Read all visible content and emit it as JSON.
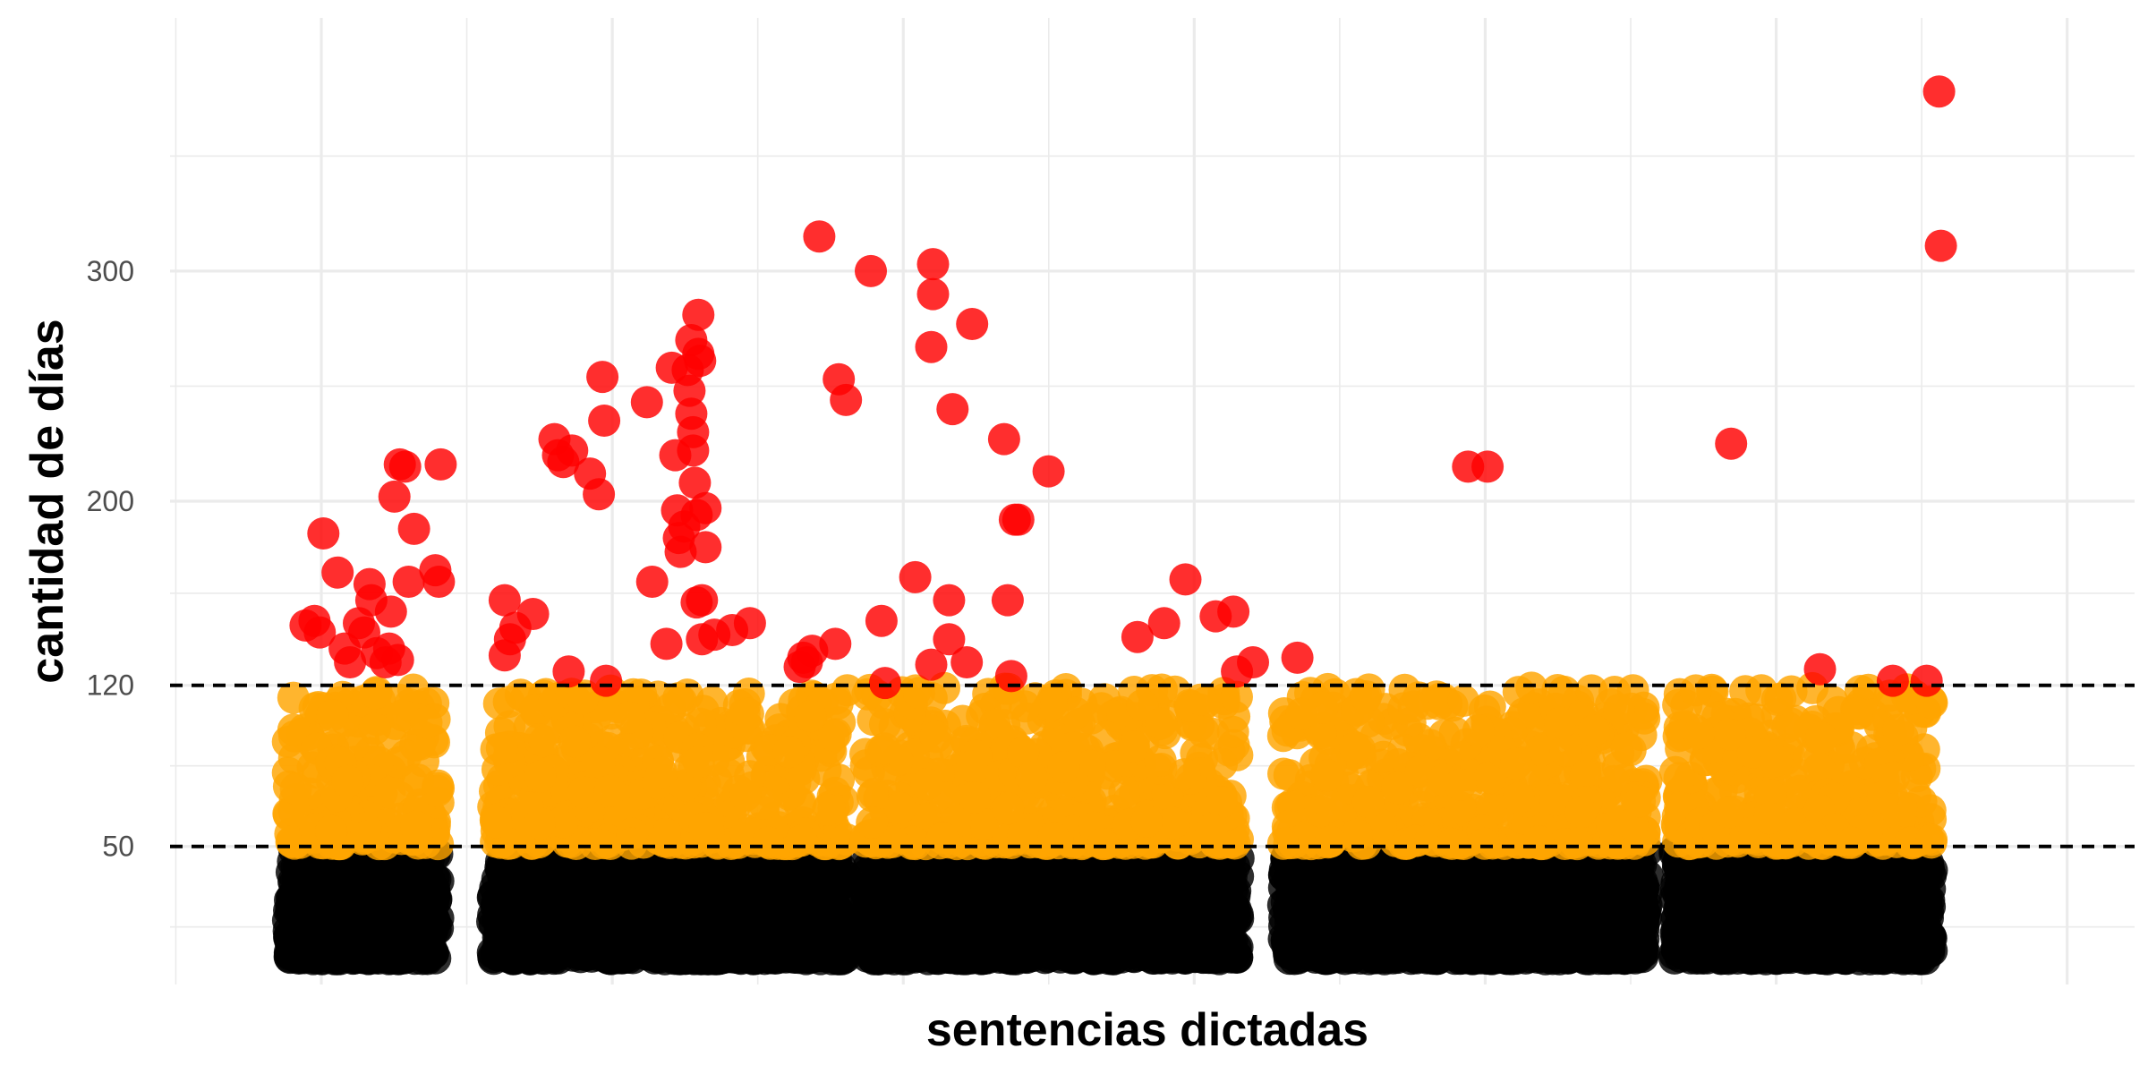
{
  "chart_data": {
    "type": "scatter",
    "title": "",
    "xlabel": "sentencias dictadas",
    "ylabel": "cantidad de días",
    "y_ticks": [
      50,
      120,
      200,
      300
    ],
    "y_tick_labels": [
      "50",
      "120",
      "200",
      "300"
    ],
    "ylim": [
      -10,
      410
    ],
    "x_range": [
      0,
      100
    ],
    "reference_lines": [
      50,
      120
    ],
    "grid": true,
    "legend": "none",
    "colors": {
      "black": "#000000",
      "orange": "#FFA500",
      "red": "#FF0000",
      "grid": "#EBEBEB",
      "reference_line": "#000000"
    },
    "color_rule": "y <= 50 black; 50 < y <= 120 orange; y > 120 red",
    "clusters": [
      {
        "x_min": 3.0,
        "x_max": 11.5
      },
      {
        "x_min": 14.5,
        "x_max": 34.5
      },
      {
        "x_min": 35.5,
        "x_max": 56.5
      },
      {
        "x_min": 59.0,
        "x_max": 79.5
      },
      {
        "x_min": 81.0,
        "x_max": 95.5
      }
    ],
    "red_points": [
      {
        "x": 4.0,
        "y": 146
      },
      {
        "x": 4.5,
        "y": 148
      },
      {
        "x": 4.8,
        "y": 143
      },
      {
        "x": 5.0,
        "y": 186
      },
      {
        "x": 5.8,
        "y": 169
      },
      {
        "x": 6.2,
        "y": 136
      },
      {
        "x": 6.5,
        "y": 130
      },
      {
        "x": 7.0,
        "y": 147
      },
      {
        "x": 7.3,
        "y": 143
      },
      {
        "x": 7.6,
        "y": 164
      },
      {
        "x": 7.7,
        "y": 157
      },
      {
        "x": 8.0,
        "y": 134
      },
      {
        "x": 8.5,
        "y": 130
      },
      {
        "x": 8.7,
        "y": 136
      },
      {
        "x": 8.8,
        "y": 152
      },
      {
        "x": 9.0,
        "y": 202
      },
      {
        "x": 9.2,
        "y": 131
      },
      {
        "x": 9.3,
        "y": 216
      },
      {
        "x": 9.6,
        "y": 215
      },
      {
        "x": 9.8,
        "y": 165
      },
      {
        "x": 10.1,
        "y": 188
      },
      {
        "x": 11.3,
        "y": 170
      },
      {
        "x": 11.5,
        "y": 165
      },
      {
        "x": 11.6,
        "y": 216
      },
      {
        "x": 15.2,
        "y": 157
      },
      {
        "x": 15.2,
        "y": 133
      },
      {
        "x": 15.5,
        "y": 140
      },
      {
        "x": 15.8,
        "y": 145
      },
      {
        "x": 16.8,
        "y": 151
      },
      {
        "x": 18.0,
        "y": 227
      },
      {
        "x": 18.2,
        "y": 220
      },
      {
        "x": 18.5,
        "y": 217
      },
      {
        "x": 18.8,
        "y": 126
      },
      {
        "x": 19.0,
        "y": 222
      },
      {
        "x": 20.0,
        "y": 212
      },
      {
        "x": 20.5,
        "y": 203
      },
      {
        "x": 20.7,
        "y": 254
      },
      {
        "x": 20.8,
        "y": 235
      },
      {
        "x": 20.9,
        "y": 122
      },
      {
        "x": 23.2,
        "y": 243
      },
      {
        "x": 23.5,
        "y": 165
      },
      {
        "x": 24.3,
        "y": 138
      },
      {
        "x": 24.6,
        "y": 258
      },
      {
        "x": 24.8,
        "y": 220
      },
      {
        "x": 24.9,
        "y": 196
      },
      {
        "x": 25.0,
        "y": 184
      },
      {
        "x": 25.1,
        "y": 178
      },
      {
        "x": 25.3,
        "y": 189
      },
      {
        "x": 25.5,
        "y": 257
      },
      {
        "x": 25.6,
        "y": 248
      },
      {
        "x": 25.7,
        "y": 270
      },
      {
        "x": 25.7,
        "y": 238
      },
      {
        "x": 25.8,
        "y": 230
      },
      {
        "x": 25.8,
        "y": 222
      },
      {
        "x": 25.9,
        "y": 208
      },
      {
        "x": 26.0,
        "y": 194
      },
      {
        "x": 26.0,
        "y": 156
      },
      {
        "x": 26.1,
        "y": 281
      },
      {
        "x": 26.1,
        "y": 264
      },
      {
        "x": 26.2,
        "y": 261
      },
      {
        "x": 26.3,
        "y": 157
      },
      {
        "x": 26.3,
        "y": 140
      },
      {
        "x": 26.5,
        "y": 180
      },
      {
        "x": 26.5,
        "y": 197
      },
      {
        "x": 27.0,
        "y": 142
      },
      {
        "x": 28.0,
        "y": 144
      },
      {
        "x": 29.0,
        "y": 147
      },
      {
        "x": 31.8,
        "y": 128
      },
      {
        "x": 32.0,
        "y": 132
      },
      {
        "x": 32.2,
        "y": 130
      },
      {
        "x": 32.5,
        "y": 135
      },
      {
        "x": 32.9,
        "y": 315
      },
      {
        "x": 33.8,
        "y": 138
      },
      {
        "x": 34.0,
        "y": 253
      },
      {
        "x": 34.4,
        "y": 244
      },
      {
        "x": 35.8,
        "y": 300
      },
      {
        "x": 36.4,
        "y": 148
      },
      {
        "x": 36.6,
        "y": 121
      },
      {
        "x": 38.3,
        "y": 167
      },
      {
        "x": 39.3,
        "y": 303
      },
      {
        "x": 39.3,
        "y": 290
      },
      {
        "x": 39.2,
        "y": 267
      },
      {
        "x": 39.2,
        "y": 129
      },
      {
        "x": 40.2,
        "y": 157
      },
      {
        "x": 40.2,
        "y": 140
      },
      {
        "x": 40.4,
        "y": 240
      },
      {
        "x": 41.2,
        "y": 130
      },
      {
        "x": 41.5,
        "y": 277
      },
      {
        "x": 43.3,
        "y": 227
      },
      {
        "x": 43.5,
        "y": 157
      },
      {
        "x": 43.7,
        "y": 124
      },
      {
        "x": 43.9,
        "y": 192
      },
      {
        "x": 44.1,
        "y": 192
      },
      {
        "x": 45.8,
        "y": 213
      },
      {
        "x": 50.8,
        "y": 141
      },
      {
        "x": 52.3,
        "y": 147
      },
      {
        "x": 53.5,
        "y": 166
      },
      {
        "x": 55.2,
        "y": 150
      },
      {
        "x": 56.2,
        "y": 152
      },
      {
        "x": 56.4,
        "y": 126
      },
      {
        "x": 57.3,
        "y": 130
      },
      {
        "x": 59.8,
        "y": 132
      },
      {
        "x": 69.4,
        "y": 215
      },
      {
        "x": 70.5,
        "y": 215
      },
      {
        "x": 84.2,
        "y": 225
      },
      {
        "x": 89.2,
        "y": 127
      },
      {
        "x": 93.3,
        "y": 122
      },
      {
        "x": 95.2,
        "y": 122
      },
      {
        "x": 95.9,
        "y": 378
      },
      {
        "x": 96.0,
        "y": 311
      }
    ]
  }
}
